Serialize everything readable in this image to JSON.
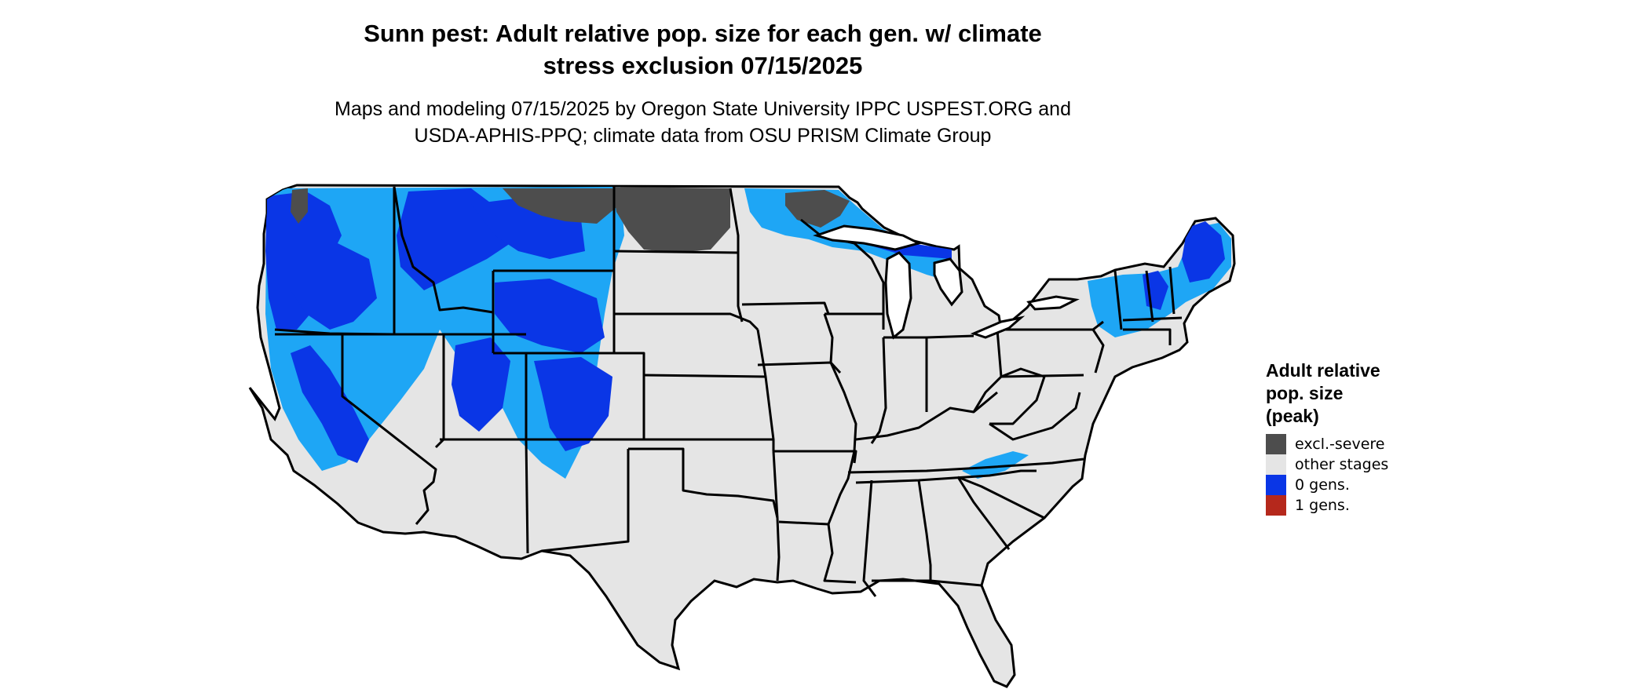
{
  "map": {
    "title_line1": "Sunn pest: Adult relative pop. size for each gen. w/ climate",
    "title_line2": "stress exclusion 07/15/2025",
    "subtitle_line1": "Maps and modeling 07/15/2025 by Oregon State University IPPC USPEST.ORG and",
    "subtitle_line2": "USDA-APHIS-PPQ; climate data from OSU PRISM Climate Group",
    "region": "Contiguous United States",
    "colors": {
      "land": "#e5e5e5",
      "border": "#000000",
      "excl_severe": "#4d4d4d",
      "zero_gens": "#0a36e6",
      "zero_gens_light": "#1ea6f5",
      "one_gens": "#b5281c"
    }
  },
  "legend": {
    "title_line1": "Adult relative",
    "title_line2": "pop. size",
    "title_line3": "(peak)",
    "items": [
      {
        "label": "excl.-severe",
        "color": "#4d4d4d"
      },
      {
        "label": "other stages",
        "color": "#e5e5e5"
      },
      {
        "label": "0 gens.",
        "color": "#0a36e6"
      },
      {
        "label": "1 gens.",
        "color": "#b5281c"
      }
    ]
  }
}
